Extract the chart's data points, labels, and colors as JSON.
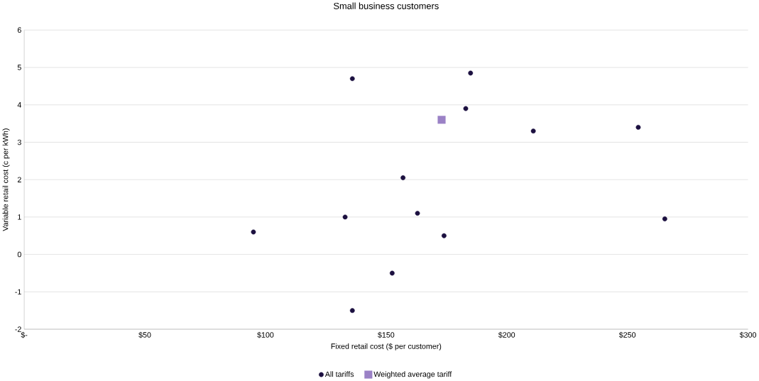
{
  "chart_data": {
    "type": "scatter",
    "title": "Small business customers",
    "xlabel": "Fixed retail cost ($ per customer)",
    "ylabel": "Variable retail cost (c per kWh)",
    "series": [
      {
        "name": "All tariffs",
        "color": "#1c1040",
        "marker": "circle",
        "x": [
          95,
          133,
          136,
          136,
          152.5,
          157,
          163,
          174,
          183,
          185,
          211,
          254.5,
          265.5
        ],
        "values": [
          0.6,
          1.0,
          4.7,
          -1.5,
          -0.5,
          2.05,
          1.1,
          0.5,
          3.9,
          4.85,
          3.3,
          3.4,
          0.95
        ]
      },
      {
        "name": "Weighted average tariff",
        "color": "#9b82c6",
        "marker": "square",
        "x": [
          173
        ],
        "values": [
          3.6
        ]
      }
    ],
    "xlim": [
      0,
      300
    ],
    "ylim": [
      -2,
      6
    ],
    "xticks": [
      {
        "value": 0,
        "label": "$-"
      },
      {
        "value": 50,
        "label": "$50"
      },
      {
        "value": 100,
        "label": "$100"
      },
      {
        "value": 150,
        "label": "$150"
      },
      {
        "value": 200,
        "label": "$200"
      },
      {
        "value": 250,
        "label": "$250"
      },
      {
        "value": 300,
        "label": "$300"
      }
    ],
    "yticks": [
      -2,
      -1,
      0,
      1,
      2,
      3,
      4,
      5,
      6
    ],
    "grid": "y",
    "legend": "bottom"
  }
}
